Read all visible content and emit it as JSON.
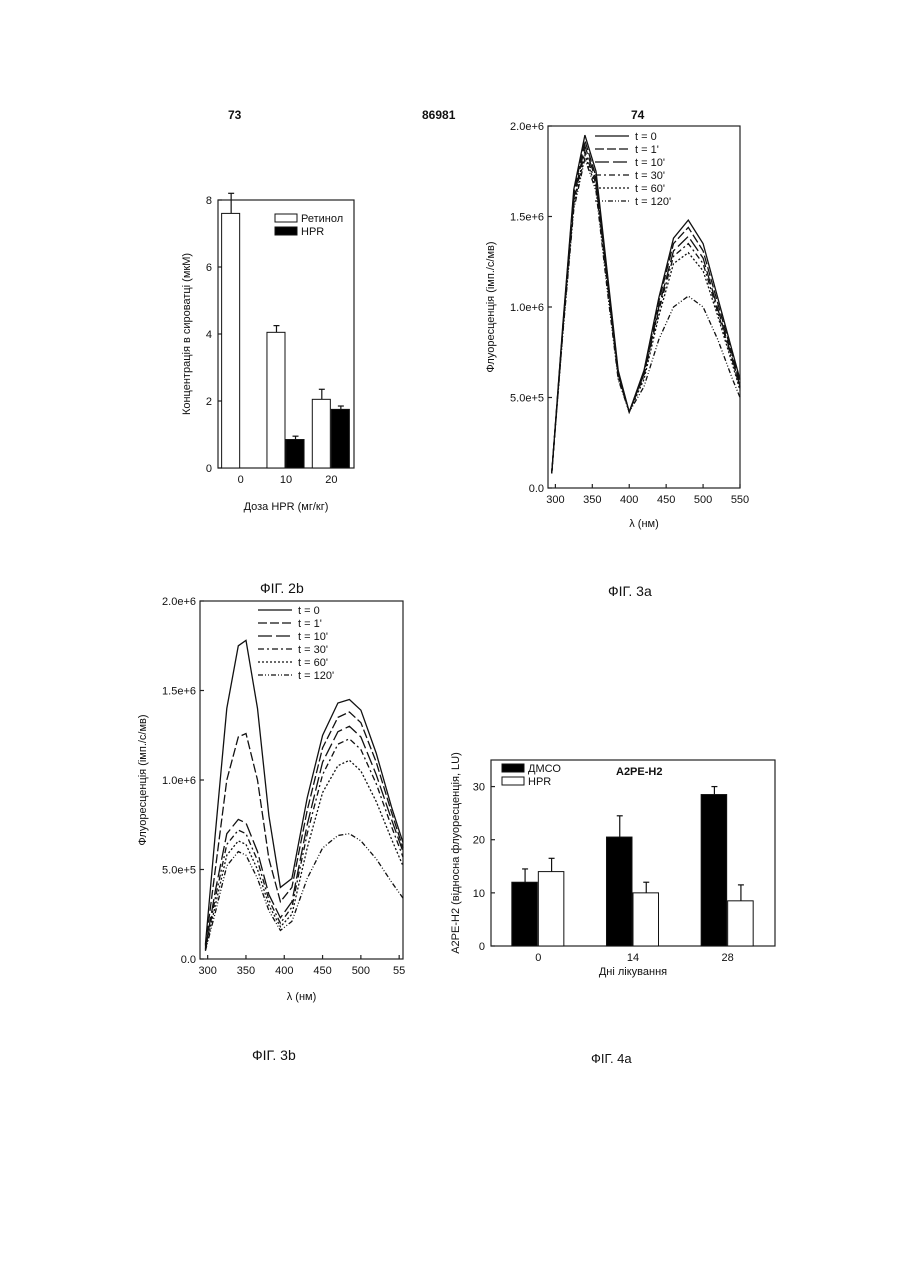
{
  "header": {
    "page_left": "73",
    "doc_number": "86981",
    "page_right": "74"
  },
  "figures": {
    "fig2b": {
      "caption": "ФІГ. 2b",
      "chart_data": {
        "type": "bar",
        "xlabel": "Доза HPR (мг/кг)",
        "ylabel": "Концентрація в сироватці (мкМ)",
        "categories": [
          "0",
          "10",
          "20"
        ],
        "ylim": [
          0,
          8
        ],
        "yticks": [
          "0",
          "2",
          "4",
          "6",
          "8"
        ],
        "legend_position": "top-right",
        "series": [
          {
            "name": "Ретинол",
            "color": "#ffffff",
            "values": [
              7.6,
              4.05,
              2.05
            ],
            "errors": [
              0.6,
              0.2,
              0.3
            ]
          },
          {
            "name": "HPR",
            "color": "#000000",
            "values": [
              0,
              0.85,
              1.75
            ],
            "errors": [
              0,
              0.1,
              0.1
            ]
          }
        ]
      }
    },
    "fig3a": {
      "caption": "ФІГ. 3а",
      "chart_data": {
        "type": "line",
        "xlabel": "λ (нм)",
        "ylabel": "Флуоресценція (імп./с/мв)",
        "xlim": [
          290,
          550
        ],
        "ylim": [
          0,
          2000000
        ],
        "xticks": [
          "300",
          "350",
          "400",
          "450",
          "500",
          "550"
        ],
        "yticks": [
          "0.0",
          "5.0e+5",
          "1.0e+6",
          "1.5e+6",
          "2.0e+6"
        ],
        "legend_position": "top-left",
        "x": [
          295,
          310,
          325,
          340,
          355,
          370,
          385,
          400,
          420,
          440,
          460,
          480,
          500,
          520,
          540,
          550
        ],
        "series": [
          {
            "name": "t = 0",
            "values": [
              80000,
              900000,
              1650000,
              1950000,
              1750000,
              1200000,
              650000,
              420000,
              650000,
              1050000,
              1380000,
              1480000,
              1350000,
              1050000,
              750000,
              600000
            ]
          },
          {
            "name": "t = 1'",
            "values": [
              80000,
              890000,
              1630000,
              1920000,
              1720000,
              1180000,
              640000,
              420000,
              640000,
              1030000,
              1350000,
              1440000,
              1310000,
              1020000,
              730000,
              580000
            ]
          },
          {
            "name": "t = 10'",
            "values": [
              80000,
              880000,
              1600000,
              1890000,
              1700000,
              1160000,
              630000,
              420000,
              630000,
              1000000,
              1310000,
              1390000,
              1270000,
              990000,
              710000,
              560000
            ]
          },
          {
            "name": "t = 30'",
            "values": [
              80000,
              870000,
              1580000,
              1860000,
              1680000,
              1150000,
              620000,
              420000,
              620000,
              980000,
              1280000,
              1350000,
              1240000,
              970000,
              700000,
              550000
            ]
          },
          {
            "name": "t = 60'",
            "values": [
              80000,
              860000,
              1560000,
              1840000,
              1660000,
              1130000,
              610000,
              420000,
              600000,
              950000,
              1240000,
              1300000,
              1200000,
              950000,
              680000,
              540000
            ]
          },
          {
            "name": "t = 120'",
            "values": [
              80000,
              850000,
              1540000,
              1820000,
              1640000,
              1100000,
              600000,
              420000,
              560000,
              820000,
              1000000,
              1060000,
              1000000,
              820000,
              600000,
              500000
            ]
          }
        ]
      }
    },
    "fig3b": {
      "caption": "ФІГ. 3b",
      "chart_data": {
        "type": "line",
        "xlabel": "λ (нм)",
        "ylabel": "Флуоресценція (імп./с/мв)",
        "xlim": [
          290,
          555
        ],
        "ylim": [
          0,
          2000000
        ],
        "xticks": [
          "300",
          "350",
          "400",
          "450",
          "500",
          "55"
        ],
        "yticks": [
          "0.0",
          "5.0e+5",
          "1.0e+6",
          "1.5e+6",
          "2.0e+6"
        ],
        "legend_position": "top-left",
        "x": [
          297,
          310,
          325,
          340,
          350,
          365,
          380,
          395,
          410,
          430,
          450,
          470,
          485,
          500,
          520,
          540,
          555
        ],
        "series": [
          {
            "name": "t = 0",
            "values": [
              80000,
              700000,
              1400000,
              1750000,
              1780000,
              1400000,
              800000,
              400000,
              450000,
              900000,
              1250000,
              1430000,
              1450000,
              1390000,
              1150000,
              850000,
              650000
            ]
          },
          {
            "name": "t = 1'",
            "values": [
              70000,
              500000,
              1000000,
              1240000,
              1260000,
              1000000,
              560000,
              320000,
              400000,
              830000,
              1180000,
              1350000,
              1380000,
              1320000,
              1100000,
              820000,
              620000
            ]
          },
          {
            "name": "t = 10'",
            "values": [
              60000,
              380000,
              700000,
              780000,
              760000,
              600000,
              360000,
              230000,
              320000,
              750000,
              1100000,
              1270000,
              1300000,
              1240000,
              1030000,
              780000,
              600000
            ]
          },
          {
            "name": "t = 30'",
            "values": [
              55000,
              340000,
              640000,
              720000,
              700000,
              550000,
              330000,
              200000,
              290000,
              700000,
              1030000,
              1200000,
              1230000,
              1170000,
              980000,
              740000,
              570000
            ]
          },
          {
            "name": "t = 60'",
            "values": [
              50000,
              300000,
              580000,
              660000,
              640000,
              500000,
              300000,
              180000,
              250000,
              620000,
              930000,
              1080000,
              1110000,
              1050000,
              880000,
              670000,
              520000
            ]
          },
          {
            "name": "t = 120'",
            "values": [
              45000,
              260000,
              520000,
              600000,
              580000,
              450000,
              270000,
              160000,
              210000,
              450000,
              620000,
              690000,
              700000,
              660000,
              560000,
              430000,
              340000
            ]
          }
        ]
      }
    },
    "fig4a": {
      "caption": "ФІГ. 4а",
      "chart_data": {
        "type": "bar",
        "title": "A2PE-H2",
        "xlabel": "Дні лікування",
        "ylabel": "A2PE-H2 (відносна флуоресценція, LU)",
        "categories": [
          "0",
          "14",
          "28"
        ],
        "ylim": [
          0,
          35
        ],
        "yticks": [
          "0",
          "10",
          "20",
          "30"
        ],
        "legend_position": "top-left",
        "series": [
          {
            "name": "ДМСО",
            "color": "#000000",
            "values": [
              12,
              20.5,
              28.5
            ],
            "errors": [
              2.5,
              4,
              1.5
            ]
          },
          {
            "name": "HPR",
            "color": "#ffffff",
            "values": [
              14,
              10,
              8.5
            ],
            "errors": [
              2.5,
              2,
              3
            ]
          }
        ]
      }
    }
  }
}
